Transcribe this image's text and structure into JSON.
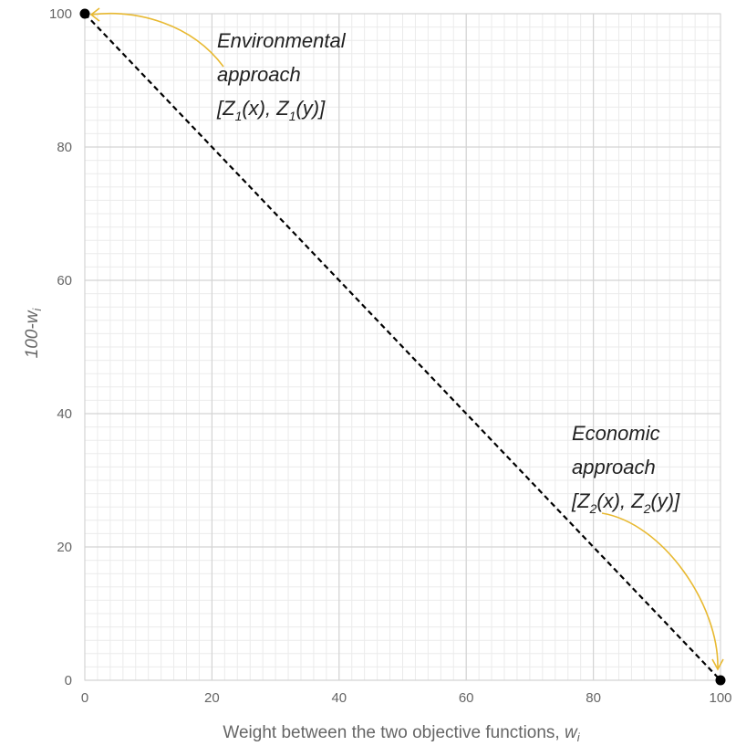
{
  "chart_data": {
    "type": "line",
    "title": "",
    "xlabel": "Weight between the two objective functions, ",
    "xlabel_var": "w",
    "xlabel_sub": "i",
    "ylabel": "100-",
    "ylabel_var": "w",
    "ylabel_sub": "i",
    "xlim": [
      0,
      100
    ],
    "ylim": [
      0,
      100
    ],
    "major_ticks": [
      0,
      20,
      40,
      60,
      80,
      100
    ],
    "minor_step": 2,
    "grid": true,
    "series": [
      {
        "x": [
          0,
          100
        ],
        "y": [
          100,
          0
        ],
        "style": "dashed",
        "color": "#000000"
      }
    ],
    "endpoints": [
      {
        "x": 0,
        "y": 100
      },
      {
        "x": 100,
        "y": 0
      }
    ],
    "annotations": {
      "environmental": {
        "line1": "Environmental",
        "line2": "approach",
        "l3_a": "[Z",
        "l3_s1": "1",
        "l3_b": "(x), Z",
        "l3_s2": "1",
        "l3_c": "(y)]",
        "points_to": {
          "x": 0,
          "y": 100
        }
      },
      "economic": {
        "line1": "Economic",
        "line2": "approach",
        "l3_a": "[Z",
        "l3_s1": "2",
        "l3_b": "(x), Z",
        "l3_s2": "2",
        "l3_c": "(y)]",
        "points_to": {
          "x": 100,
          "y": 0
        }
      }
    },
    "colors": {
      "arrow": "#E8B931",
      "line": "#000000",
      "grid_major": "#D4D4D4",
      "grid_minor": "#EBEBEB"
    }
  }
}
